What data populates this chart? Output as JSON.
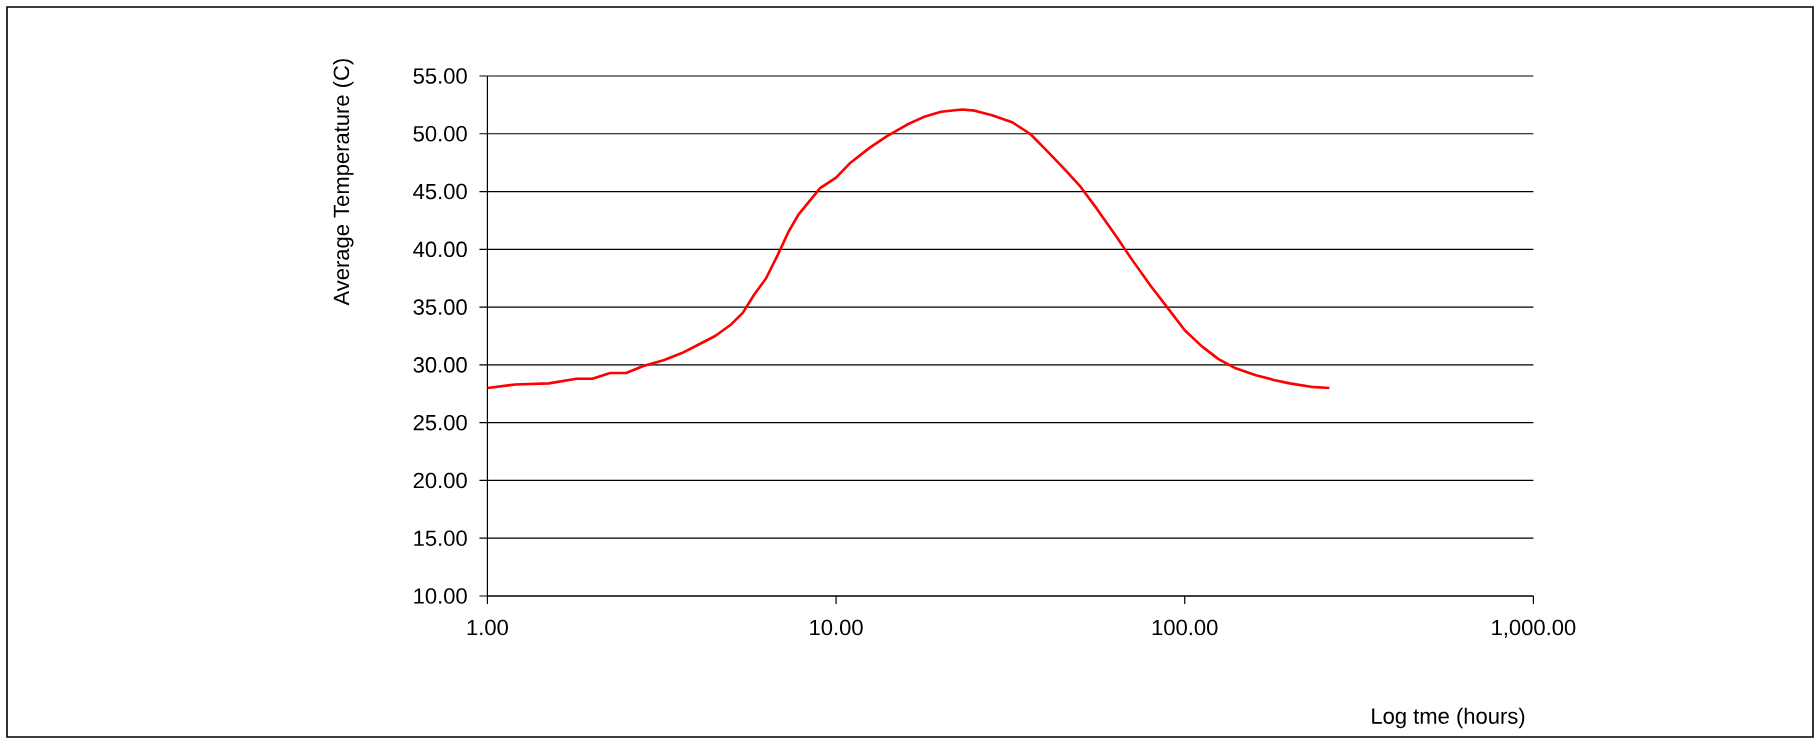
{
  "chart_data": {
    "type": "line",
    "xlabel": "Log tme (hours)",
    "ylabel": "Average Temperature (C)",
    "log": "x",
    "grid": "y",
    "marker": "none",
    "line_style": "solid",
    "xlim": [
      1,
      1000
    ],
    "ylim": [
      10,
      55
    ],
    "xticks": [
      {
        "value": 1,
        "label": "1.00"
      },
      {
        "value": 10,
        "label": "10.00"
      },
      {
        "value": 100,
        "label": "100.00"
      },
      {
        "value": 1000,
        "label": "1,000.00"
      }
    ],
    "yticks": [
      {
        "value": 10,
        "label": "10.00"
      },
      {
        "value": 15,
        "label": "15.00"
      },
      {
        "value": 20,
        "label": "20.00"
      },
      {
        "value": 25,
        "label": "25.00"
      },
      {
        "value": 30,
        "label": "30.00"
      },
      {
        "value": 35,
        "label": "35.00"
      },
      {
        "value": 40,
        "label": "40.00"
      },
      {
        "value": 45,
        "label": "45.00"
      },
      {
        "value": 50,
        "label": "50.00"
      },
      {
        "value": 55,
        "label": "55.00"
      }
    ],
    "x": [
      1,
      1.2,
      1.5,
      1.8,
      2,
      2.25,
      2.5,
      2.8,
      3.2,
      3.6,
      4,
      4.5,
      5,
      5.4,
      5.8,
      6.3,
      6.8,
      7.3,
      7.8,
      8.3,
      9,
      10,
      11,
      12.5,
      14,
      16,
      18,
      20,
      23,
      25,
      28,
      32,
      36,
      40,
      45,
      50,
      56,
      63,
      71,
      80,
      90,
      100,
      112,
      125,
      140,
      160,
      180,
      200,
      230,
      260
    ],
    "series": [
      {
        "color": "#ff0000",
        "values": [
          28.0,
          28.3,
          28.4,
          28.8,
          28.8,
          29.3,
          29.3,
          29.9,
          30.4,
          31.0,
          31.7,
          32.5,
          33.5,
          34.5,
          36.0,
          37.5,
          39.5,
          41.5,
          43.0,
          44.0,
          45.3,
          46.2,
          47.5,
          48.8,
          49.8,
          50.8,
          51.5,
          51.9,
          52.1,
          52.0,
          51.6,
          51.0,
          50.0,
          48.6,
          47.0,
          45.5,
          43.5,
          41.3,
          39.0,
          36.8,
          34.8,
          33.0,
          31.6,
          30.5,
          29.7,
          29.1,
          28.7,
          28.4,
          28.1,
          28.0
        ]
      }
    ]
  }
}
